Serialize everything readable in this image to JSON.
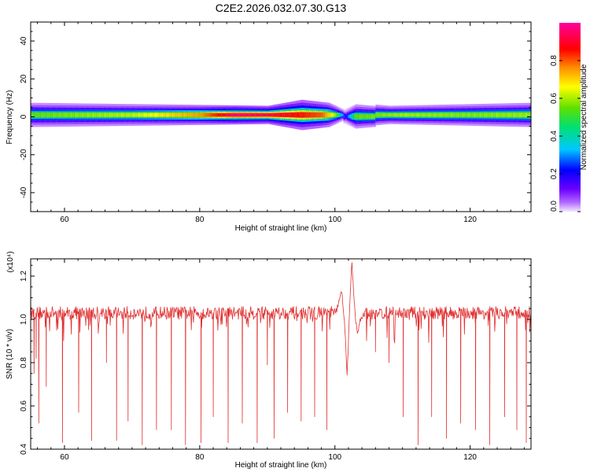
{
  "figure": {
    "title": "C2E2.2026.032.07.30.G13"
  },
  "chart_data": [
    {
      "type": "heatmap",
      "xlabel": "Height of straight line (km)",
      "ylabel": "Frequency (Hz)",
      "xlim": [
        55,
        129
      ],
      "ylim": [
        -50,
        50
      ],
      "xticks": [
        60,
        80,
        100,
        120
      ],
      "yticks": [
        40,
        20,
        0,
        -20,
        -40
      ],
      "band": {
        "center_hz": 1,
        "profile": [
          {
            "x": 55,
            "half_width_hz": 4
          },
          {
            "x": 90,
            "half_width_hz": 3
          },
          {
            "x": 95,
            "half_width_hz": 5
          },
          {
            "x": 99,
            "half_width_hz": 4
          },
          {
            "x": 101,
            "half_width_hz": 2
          },
          {
            "x": 103,
            "half_width_hz": 4
          },
          {
            "x": 108,
            "half_width_hz": 3
          },
          {
            "x": 129,
            "half_width_hz": 4
          }
        ],
        "peak_amplitude": [
          {
            "x": 55,
            "value": 0.55
          },
          {
            "x": 70,
            "value": 0.62
          },
          {
            "x": 80,
            "value": 0.75
          },
          {
            "x": 85,
            "value": 0.95
          },
          {
            "x": 92,
            "value": 0.9
          },
          {
            "x": 98,
            "value": 0.8
          },
          {
            "x": 100,
            "value": 0.6
          },
          {
            "x": 101.5,
            "value": 0.2
          },
          {
            "x": 103,
            "value": 0.55
          },
          {
            "x": 110,
            "value": 0.6
          },
          {
            "x": 120,
            "value": 0.58
          },
          {
            "x": 129,
            "value": 0.6
          }
        ]
      },
      "colorbar": {
        "label": "Normalized spectral amplitude",
        "ticks": [
          "0.0",
          "0.2",
          "0.4",
          "0.6",
          "0.8"
        ],
        "tick_values": [
          0.0,
          0.2,
          0.4,
          0.6,
          0.8
        ],
        "range": [
          0,
          1
        ],
        "colormap": "rainbow (purple to red)"
      }
    },
    {
      "type": "line",
      "xlabel": "Height of straight line (km)",
      "ylabel": "SNR (10 * v/v)",
      "y_multiplier": "(x10⁴)",
      "xlim": [
        55,
        129
      ],
      "ylim": [
        0.4,
        1.28
      ],
      "xticks": [
        60,
        80,
        100,
        120
      ],
      "yticks": [
        0.4,
        0.6,
        0.8,
        1.0,
        1.2
      ],
      "series": [
        {
          "color": "#e03030",
          "baseline": 1.03,
          "dips": [
            {
              "x": 55.5,
              "y": 0.75
            },
            {
              "x": 55.8,
              "y": 0.82
            },
            {
              "x": 56.2,
              "y": 0.52
            },
            {
              "x": 57.3,
              "y": 0.69
            },
            {
              "x": 59.7,
              "y": 0.43
            },
            {
              "x": 62.1,
              "y": 0.57
            },
            {
              "x": 64.0,
              "y": 0.44
            },
            {
              "x": 66.2,
              "y": 0.8
            },
            {
              "x": 67.7,
              "y": 0.44
            },
            {
              "x": 69.4,
              "y": 0.53
            },
            {
              "x": 71.5,
              "y": 0.42
            },
            {
              "x": 73.6,
              "y": 0.49
            },
            {
              "x": 75.8,
              "y": 0.49
            },
            {
              "x": 77.9,
              "y": 0.42
            },
            {
              "x": 80.2,
              "y": 0.43
            },
            {
              "x": 82.0,
              "y": 0.55
            },
            {
              "x": 84.2,
              "y": 0.43
            },
            {
              "x": 86.3,
              "y": 0.52
            },
            {
              "x": 88.5,
              "y": 0.43
            },
            {
              "x": 90.0,
              "y": 0.79
            },
            {
              "x": 91.0,
              "y": 0.45
            },
            {
              "x": 93.0,
              "y": 0.57
            },
            {
              "x": 95.0,
              "y": 0.53
            },
            {
              "x": 97.0,
              "y": 0.55
            },
            {
              "x": 98.8,
              "y": 0.49
            },
            {
              "x": 106.0,
              "y": 0.85
            },
            {
              "x": 108.0,
              "y": 0.8
            },
            {
              "x": 110.1,
              "y": 0.55
            },
            {
              "x": 112.3,
              "y": 0.42
            },
            {
              "x": 114.3,
              "y": 0.55
            },
            {
              "x": 116.5,
              "y": 0.45
            },
            {
              "x": 118.6,
              "y": 0.52
            },
            {
              "x": 120.8,
              "y": 0.49
            },
            {
              "x": 122.9,
              "y": 0.42
            },
            {
              "x": 125.1,
              "y": 0.55
            },
            {
              "x": 126.9,
              "y": 0.49
            },
            {
              "x": 128.3,
              "y": 0.43
            }
          ],
          "event": [
            {
              "x": 100.0,
              "y": 1.02
            },
            {
              "x": 100.6,
              "y": 1.08
            },
            {
              "x": 101.0,
              "y": 1.13
            },
            {
              "x": 101.4,
              "y": 1.0
            },
            {
              "x": 101.8,
              "y": 0.74
            },
            {
              "x": 102.2,
              "y": 1.06
            },
            {
              "x": 102.5,
              "y": 1.28
            },
            {
              "x": 102.9,
              "y": 1.05
            },
            {
              "x": 103.3,
              "y": 0.93
            },
            {
              "x": 103.8,
              "y": 1.0
            },
            {
              "x": 104.5,
              "y": 1.03
            }
          ]
        }
      ]
    }
  ]
}
